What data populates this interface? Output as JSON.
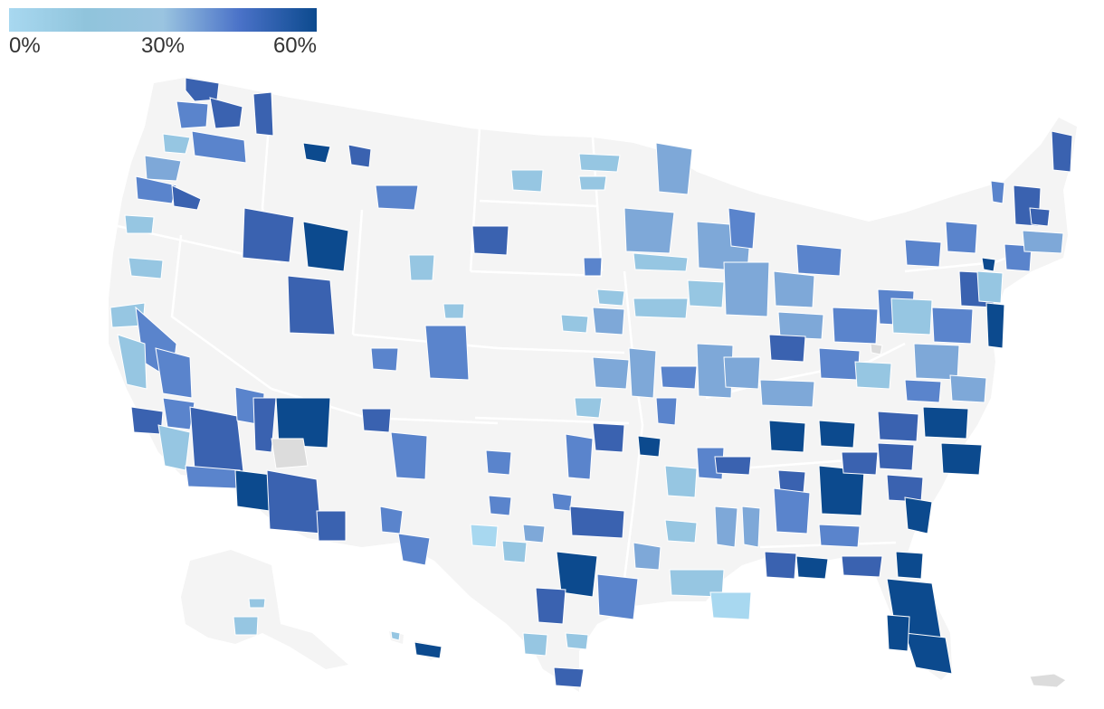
{
  "legend": {
    "ticks": [
      "0%",
      "30%",
      "60%"
    ],
    "gradient_stops": [
      "#a8d8f0",
      "#90c4dc",
      "#9ac4e0",
      "#4a72c8",
      "#0c4a8e"
    ],
    "range": [
      0,
      60
    ]
  },
  "colors": {
    "land": "#f4f4f4",
    "no_data": "#dcdcdc",
    "borders": "#ffffff"
  },
  "chart_data": {
    "type": "heatmap",
    "title": "",
    "value_unit": "%",
    "scale_range": [
      0,
      60
    ]
  }
}
